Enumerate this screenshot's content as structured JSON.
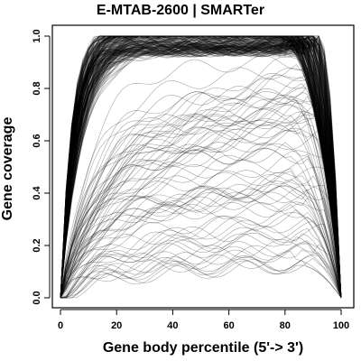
{
  "chart_data": {
    "type": "line",
    "title": "E-MTAB-2600 | SMARTer",
    "xlabel": "Gene body percentile (5'-> 3')",
    "ylabel": "Gene coverage",
    "xlim": [
      0,
      100
    ],
    "ylim": [
      0,
      1
    ],
    "x_ticks": [
      0,
      20,
      40,
      60,
      80,
      100
    ],
    "x_tick_labels": [
      "0",
      "20",
      "40",
      "60",
      "80",
      "100"
    ],
    "y_ticks": [
      0,
      0.2,
      0.4,
      0.6,
      0.8,
      1.0
    ],
    "y_tick_labels": [
      "0.0",
      "0.2",
      "0.4",
      "0.6",
      "0.8",
      "1.0"
    ],
    "grid": false,
    "legend": "none",
    "line_color": "#000000",
    "series_count_approx": 400,
    "series_summary": [
      {
        "description": "dense majority band",
        "x": [
          0,
          5,
          10,
          20,
          30,
          40,
          50,
          60,
          70,
          80,
          90,
          95,
          100
        ],
        "y": [
          0.0,
          0.32,
          0.55,
          0.8,
          0.92,
          0.97,
          0.98,
          0.97,
          0.96,
          0.95,
          0.88,
          0.62,
          0.0
        ]
      },
      {
        "description": "mid-coverage minority",
        "x": [
          0,
          10,
          20,
          40,
          60,
          80,
          90,
          95,
          100
        ],
        "y": [
          0.0,
          0.25,
          0.4,
          0.55,
          0.68,
          0.8,
          0.78,
          0.55,
          0.0
        ]
      },
      {
        "description": "low-coverage minority",
        "x": [
          0,
          10,
          20,
          40,
          60,
          80,
          95,
          100
        ],
        "y": [
          0.0,
          0.08,
          0.12,
          0.18,
          0.22,
          0.28,
          0.3,
          0.0
        ]
      }
    ]
  }
}
